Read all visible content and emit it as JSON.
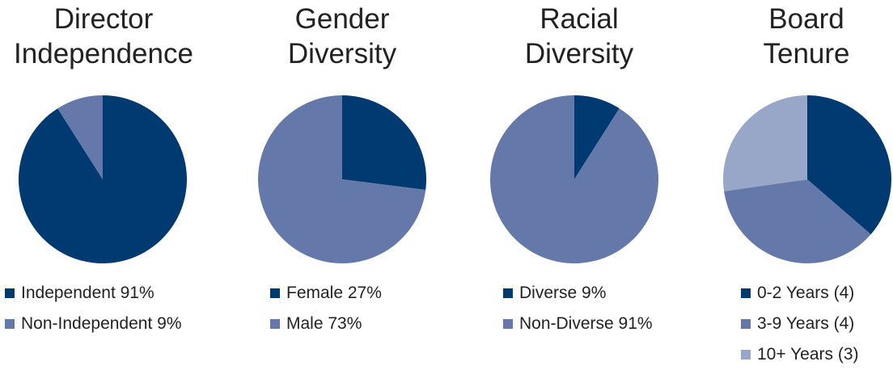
{
  "colors": {
    "dark": "#003a70",
    "mid": "#6479a9",
    "light": "#98a6c8"
  },
  "chart_data": [
    {
      "type": "pie",
      "title": "Director\nIndependence",
      "slices": [
        {
          "label": "Independent 91%",
          "value": 91,
          "color": "#003a70"
        },
        {
          "label": "Non-Independent 9%",
          "value": 9,
          "color": "#6479a9"
        }
      ]
    },
    {
      "type": "pie",
      "title": "Gender\nDiversity",
      "slices": [
        {
          "label": "Female 27%",
          "value": 27,
          "color": "#003a70"
        },
        {
          "label": "Male 73%",
          "value": 73,
          "color": "#6479a9"
        }
      ]
    },
    {
      "type": "pie",
      "title": "Racial\nDiversity",
      "slices": [
        {
          "label": "Diverse 9%",
          "value": 9,
          "color": "#003a70"
        },
        {
          "label": "Non-Diverse 91%",
          "value": 91,
          "color": "#6479a9"
        }
      ]
    },
    {
      "type": "pie",
      "title": "Board\nTenure",
      "slices": [
        {
          "label": "0-2 Years (4)",
          "value": 4,
          "color": "#003a70"
        },
        {
          "label": "3-9 Years (4)",
          "value": 4,
          "color": "#6479a9"
        },
        {
          "label": "10+ Years (3)",
          "value": 3,
          "color": "#98a6c8"
        }
      ]
    }
  ]
}
